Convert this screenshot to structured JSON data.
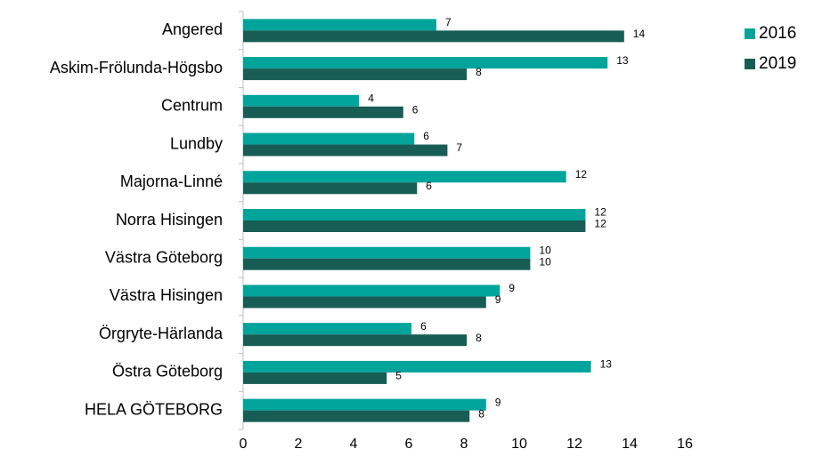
{
  "chart_data": {
    "type": "bar",
    "orientation": "horizontal",
    "categories": [
      "Angered",
      "Askim-Frölunda-Högsbo",
      "Centrum",
      "Lundby",
      "Majorna-Linné",
      "Norra Hisingen",
      "Västra Göteborg",
      "Västra Hisingen",
      "Örgryte-Härlanda",
      "Östra Göteborg",
      "HELA GÖTEBORG"
    ],
    "series": [
      {
        "name": "2016",
        "color": "#00a49a",
        "values": [
          7.0,
          13.2,
          4.2,
          6.2,
          11.7,
          12.4,
          10.4,
          9.3,
          6.1,
          12.6,
          8.8
        ],
        "value_labels": [
          "7",
          "13",
          "4",
          "6",
          "12",
          "12",
          "10",
          "9",
          "6",
          "13",
          "9"
        ]
      },
      {
        "name": "2019",
        "color": "#175d55",
        "values": [
          13.8,
          8.1,
          5.8,
          7.4,
          6.3,
          12.4,
          10.4,
          8.8,
          8.1,
          5.2,
          8.2
        ],
        "value_labels": [
          "14",
          "8",
          "6",
          "7",
          "6",
          "12",
          "10",
          "9",
          "8",
          "5",
          "8"
        ]
      }
    ],
    "xlim": [
      0,
      16
    ],
    "xticks": [
      0,
      2,
      4,
      6,
      8,
      10,
      12,
      14,
      16
    ],
    "legend": "top-right"
  }
}
